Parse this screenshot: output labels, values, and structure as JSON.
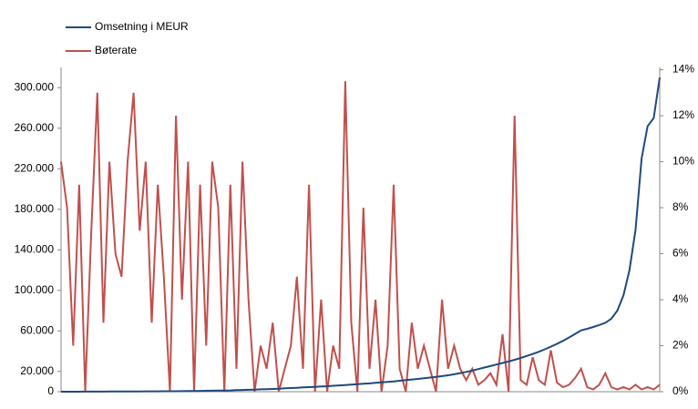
{
  "chart_data": {
    "type": "line",
    "categories": [
      null,
      null,
      null,
      null,
      null,
      null,
      null,
      null,
      null,
      null,
      null,
      null,
      null,
      null,
      null,
      null,
      null,
      null,
      null,
      null,
      null,
      null,
      null,
      null,
      null,
      null,
      null,
      null,
      null,
      null,
      null,
      null,
      null,
      null,
      null,
      null,
      null,
      null,
      null,
      null,
      null,
      null,
      null,
      null,
      null,
      null,
      null,
      null,
      null,
      null,
      null,
      null,
      null,
      null,
      null,
      null,
      null,
      null,
      null,
      null,
      null,
      null,
      null,
      null,
      null,
      null,
      null,
      null,
      null,
      null,
      null,
      null,
      null,
      null,
      null,
      null,
      null,
      null,
      null,
      null,
      null,
      null,
      null,
      null,
      null,
      null,
      null,
      null,
      null,
      null,
      null,
      null,
      null,
      null,
      null,
      null,
      null,
      null,
      null,
      null
    ],
    "series": [
      {
        "name": "Omsetning i MEUR",
        "color": "#1f497d",
        "values": [
          0,
          0,
          20,
          40,
          60,
          80,
          100,
          120,
          150,
          180,
          210,
          240,
          270,
          300,
          330,
          360,
          390,
          420,
          450,
          480,
          500,
          600,
          700,
          800,
          900,
          1000,
          1100,
          1200,
          1300,
          1500,
          1700,
          1900,
          2100,
          2300,
          2500,
          2700,
          3000,
          3300,
          3600,
          3900,
          4200,
          4500,
          4800,
          5100,
          5400,
          5800,
          6200,
          6600,
          7000,
          7400,
          7800,
          8200,
          8700,
          9200,
          9700,
          10200,
          10800,
          11400,
          12000,
          12600,
          13200,
          13900,
          14600,
          15400,
          16200,
          17200,
          18300,
          19500,
          20800,
          22300,
          23800,
          25300,
          26800,
          28300,
          29800,
          31500,
          33300,
          35200,
          37200,
          39400,
          41800,
          44400,
          47200,
          50200,
          53500,
          57000,
          60500,
          62000,
          63800,
          65800,
          68000,
          72000,
          80000,
          95000,
          120000,
          160000,
          230000,
          262000,
          270000,
          310000
        ]
      },
      {
        "name": "Bøterate",
        "color": "#c0504d",
        "axis": "y2",
        "values": [
          10,
          8,
          2,
          9,
          0,
          7,
          13,
          3,
          10,
          6,
          5,
          10,
          13,
          7,
          10,
          3,
          9,
          5,
          0,
          12,
          4,
          10,
          0,
          9,
          2,
          10,
          8,
          0,
          9,
          1,
          10,
          4,
          0,
          2,
          1,
          3,
          0,
          1,
          2,
          5,
          1,
          9,
          0,
          4,
          0,
          2,
          1,
          13.5,
          3,
          0,
          8,
          1,
          4,
          0,
          2,
          9,
          1,
          0,
          3,
          1,
          2,
          1,
          0,
          4,
          1,
          2,
          1,
          0.5,
          1,
          0.3,
          0.5,
          0.8,
          0.3,
          2.5,
          0,
          12,
          0.5,
          0.3,
          1.5,
          0.5,
          0.3,
          1.8,
          0.4,
          0.2,
          0.3,
          0.6,
          1,
          0.2,
          0.1,
          0.3,
          0.8,
          0.2,
          0.1,
          0.2,
          0.1,
          0.3,
          0.1,
          0.2,
          0.1,
          0.3
        ]
      }
    ],
    "ylim": [
      0,
      320000
    ],
    "yticks": [
      0,
      {
        "value": 20000,
        "label": "20.000"
      },
      {
        "value": 60000,
        "label": "60.000"
      },
      {
        "value": 100000,
        "label": "100.000"
      },
      {
        "value": 140000,
        "label": "140.000"
      },
      {
        "value": 180000,
        "label": "180.000"
      },
      {
        "value": 220000,
        "label": "220.000"
      },
      {
        "value": 260000,
        "label": "260.000"
      },
      {
        "value": 300000,
        "label": "300.000"
      }
    ],
    "y2lim": [
      0,
      14.1
    ],
    "y2ticks": [
      {
        "value": 0,
        "label": "0%"
      },
      {
        "value": 2,
        "label": "2%"
      },
      {
        "value": 4,
        "label": "4%"
      },
      {
        "value": 6,
        "label": "6%"
      },
      {
        "value": 8,
        "label": "8%"
      },
      {
        "value": 10,
        "label": "10%"
      },
      {
        "value": 12,
        "label": "12%"
      },
      {
        "value": 14,
        "label": "14%"
      }
    ],
    "legend": "top-left"
  }
}
